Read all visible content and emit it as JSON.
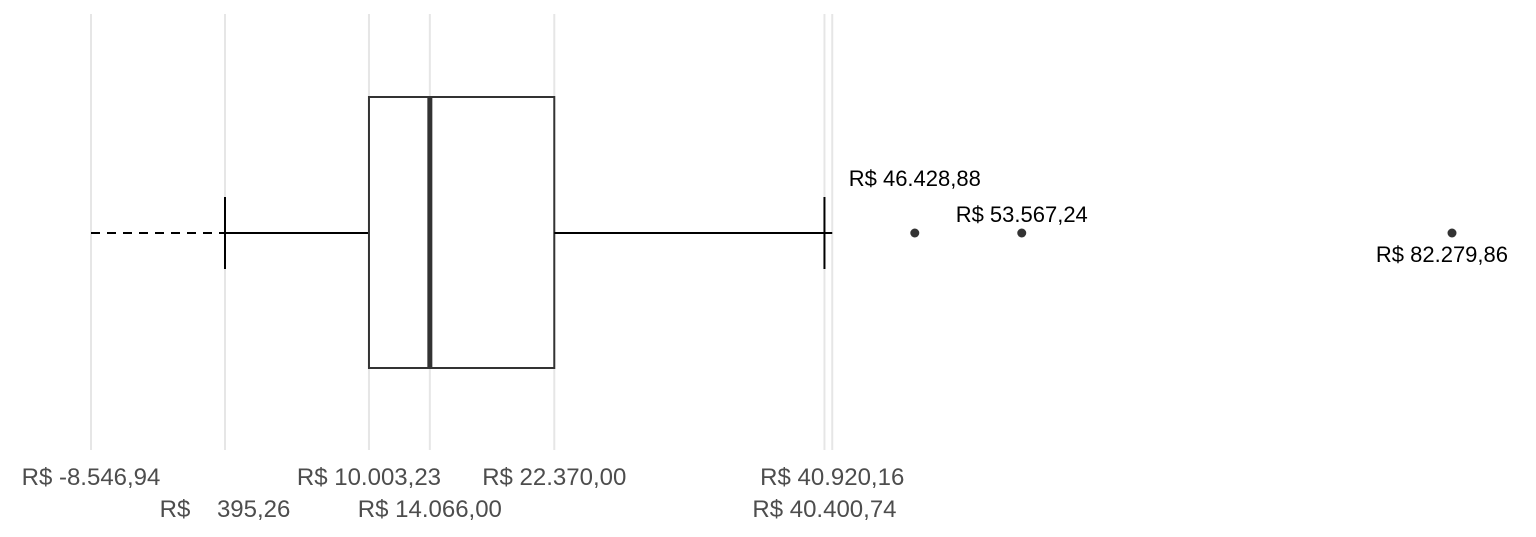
{
  "chart_data": {
    "type": "boxplot",
    "orientation": "horizontal",
    "currency_prefix": "R$",
    "xlim": [
      -8546.94,
      82279.86
    ],
    "grid": "vertical",
    "legend": "none",
    "stats": {
      "lower_fence": -8546.94,
      "whisker_low": 395.26,
      "q1": 10003.23,
      "median": 14066.0,
      "q3": 22370.0,
      "whisker_high": 40400.74,
      "upper_fence": 40920.16
    },
    "outliers": [
      46428.88,
      53567.24,
      82279.86
    ],
    "tick_labels": {
      "lower_fence": "R$ -8.546,94",
      "whisker_low": "R$    395,26",
      "q1": "R$ 10.003,23",
      "median": "R$ 14.066,00",
      "q3": "R$ 22.370,00",
      "whisker_high": "R$ 40.400,74",
      "upper_fence": "R$ 40.920,16"
    },
    "outlier_labels": [
      "R$ 46.428,88",
      "R$ 53.567,24",
      "R$ 82.279,86"
    ],
    "colors": {
      "box": "#333333",
      "outlier": "#333333",
      "grid": "#e6e6e6",
      "tick_text": "#4d4d4d"
    }
  }
}
